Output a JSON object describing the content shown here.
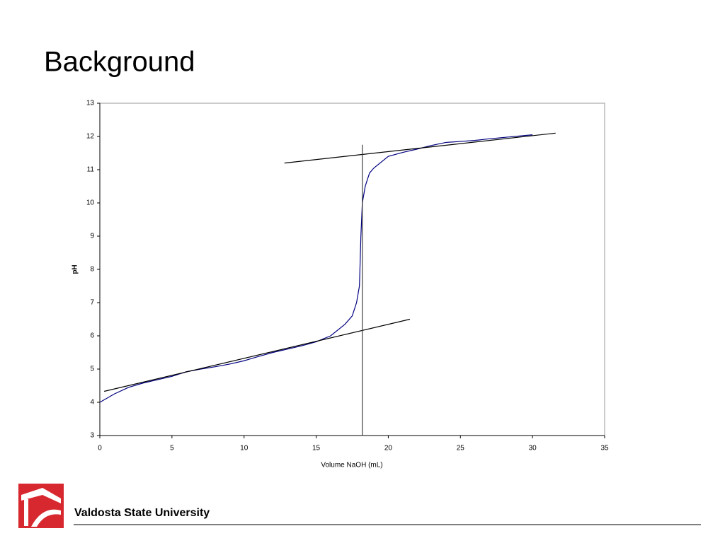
{
  "slide_title": "Background",
  "footer": "Valdosta State University",
  "chart_data": {
    "type": "line",
    "x_label": "Volume NaOH (mL)",
    "y_label": "pH",
    "xlim": [
      0,
      35
    ],
    "ylim": [
      3,
      13
    ],
    "xticks": [
      0,
      5,
      10,
      15,
      20,
      25,
      30,
      35
    ],
    "yticks": [
      3,
      4,
      5,
      6,
      7,
      8,
      9,
      10,
      11,
      12,
      13
    ],
    "series": [
      {
        "color": "#000080",
        "x": [
          0,
          1,
          2,
          3,
          4,
          5,
          6,
          7,
          8,
          9,
          10,
          11,
          12,
          13,
          14,
          15,
          16,
          17,
          17.5,
          17.8,
          18.0,
          18.1,
          18.2,
          18.4,
          18.7,
          19,
          20,
          21,
          22,
          23,
          24,
          25,
          26,
          27,
          28,
          30
        ],
        "values": [
          4.0,
          4.25,
          4.45,
          4.58,
          4.68,
          4.78,
          4.92,
          5.0,
          5.07,
          5.15,
          5.25,
          5.38,
          5.5,
          5.6,
          5.7,
          5.82,
          6.0,
          6.35,
          6.6,
          7.0,
          7.5,
          9.0,
          10.0,
          10.5,
          10.9,
          11.05,
          11.4,
          11.52,
          11.62,
          11.73,
          11.82,
          11.85,
          11.88,
          11.93,
          11.97,
          12.05
        ]
      },
      {
        "color": "#000000",
        "x": [
          0.3,
          21.5
        ],
        "values": [
          4.33,
          6.5
        ]
      },
      {
        "color": "#000000",
        "x": [
          12.8,
          31.6
        ],
        "values": [
          11.2,
          12.1
        ]
      },
      {
        "color": "#404040",
        "x": [
          18.2,
          18.2
        ],
        "values": [
          3,
          11.75
        ]
      }
    ]
  }
}
